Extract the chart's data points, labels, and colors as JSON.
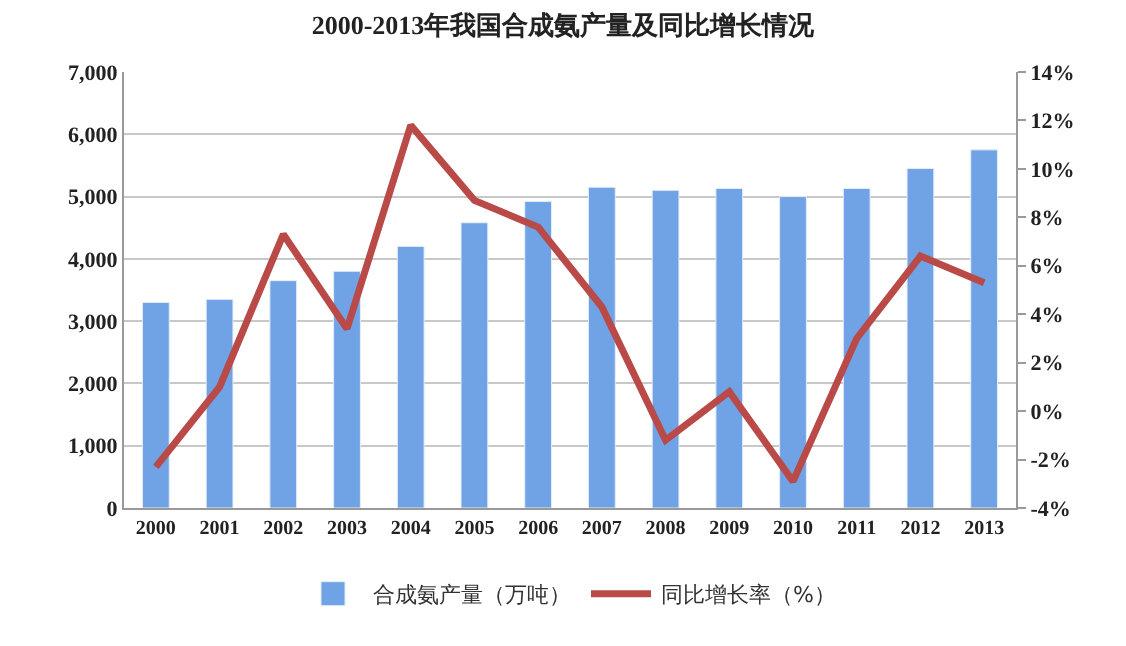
{
  "chart_data": {
    "type": "bar",
    "title": "2000-2013年我国合成氨产量及同比增长情况",
    "categories": [
      "2000",
      "2001",
      "2002",
      "2003",
      "2004",
      "2005",
      "2006",
      "2007",
      "2008",
      "2009",
      "2010",
      "2011",
      "2012",
      "2013"
    ],
    "series": [
      {
        "name": "合成氨产量（万吨）",
        "color": "#6fa3e6",
        "values": [
          3300,
          3350,
          3650,
          3800,
          4200,
          4580,
          4920,
          5150,
          5100,
          5130,
          5000,
          5130,
          5450,
          5750
        ]
      },
      {
        "name": "同比增长率（%）",
        "type": "line",
        "axis": "y2",
        "color": "#b94a48",
        "values": [
          -2.3,
          1.0,
          7.3,
          3.4,
          11.8,
          8.7,
          7.6,
          4.3,
          -1.2,
          0.8,
          -2.9,
          3.0,
          6.4,
          5.3
        ]
      }
    ],
    "ylim": [
      0,
      7000
    ],
    "yticks": [
      {
        "value": 0,
        "label": "0"
      },
      {
        "value": 1000,
        "label": "1,000"
      },
      {
        "value": 2000,
        "label": "2,000"
      },
      {
        "value": 3000,
        "label": "3,000"
      },
      {
        "value": 4000,
        "label": "4,000"
      },
      {
        "value": 5000,
        "label": "5,000"
      },
      {
        "value": 6000,
        "label": "6,000"
      },
      {
        "value": 7000,
        "label": "7,000"
      }
    ],
    "y2lim": [
      -4,
      14
    ],
    "y2ticks": [
      {
        "value": -4,
        "label": "-4%"
      },
      {
        "value": -2,
        "label": "-2%"
      },
      {
        "value": 0,
        "label": "0%"
      },
      {
        "value": 2,
        "label": "2%"
      },
      {
        "value": 4,
        "label": "4%"
      },
      {
        "value": 6,
        "label": "6%"
      },
      {
        "value": 8,
        "label": "8%"
      },
      {
        "value": 10,
        "label": "10%"
      },
      {
        "value": 12,
        "label": "12%"
      },
      {
        "value": 14,
        "label": "14%"
      }
    ],
    "grid": "y",
    "legend": "bottom",
    "marker": "none",
    "line_style": "solid"
  }
}
